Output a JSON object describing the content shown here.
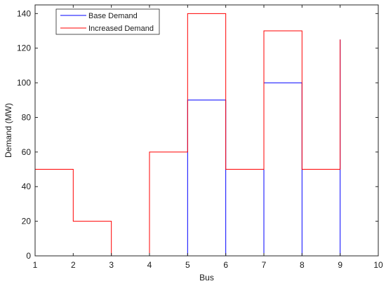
{
  "chart_data": {
    "type": "line",
    "title": "",
    "xlabel": "Bus",
    "ylabel": "Demand (MW)",
    "xlim": [
      1,
      10
    ],
    "ylim": [
      0,
      145
    ],
    "xticks": [
      1,
      2,
      3,
      4,
      5,
      6,
      7,
      8,
      9,
      10
    ],
    "yticks": [
      0,
      20,
      40,
      60,
      80,
      100,
      120,
      140
    ],
    "grid": false,
    "legend_position": "top-left",
    "series": [
      {
        "name": "Base Demand",
        "color": "#0000ff",
        "style": "stairs",
        "x": [
          1,
          2,
          3,
          4,
          5,
          6,
          7,
          8,
          9
        ],
        "y": [
          0,
          0,
          0,
          0,
          90,
          0,
          100,
          0,
          125
        ]
      },
      {
        "name": "Increased Demand",
        "color": "#ff0000",
        "style": "stairs",
        "x": [
          1,
          2,
          3,
          4,
          5,
          6,
          7,
          8,
          9
        ],
        "y": [
          50,
          20,
          0,
          60,
          140,
          50,
          130,
          50,
          125
        ]
      }
    ]
  }
}
